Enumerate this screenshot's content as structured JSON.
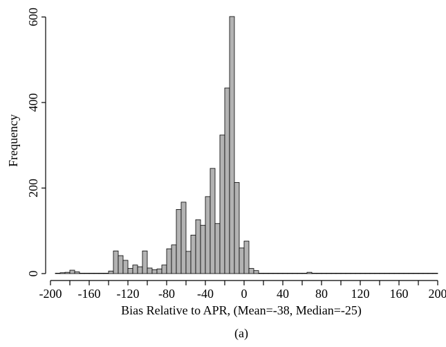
{
  "chart_data": {
    "type": "bar",
    "xlabel": "Bias Relative to APR, (Mean=-38, Median=-25)",
    "ylabel": "Frequency",
    "caption": "(a)",
    "xlim": [
      -205,
      205
    ],
    "ylim": [
      0,
      630
    ],
    "xticks": [
      -200,
      -160,
      -120,
      -80,
      -40,
      0,
      40,
      80,
      120,
      160,
      200
    ],
    "xtick_labels": [
      "-200",
      "-160",
      "-120",
      "-80",
      "-40",
      "0",
      "40",
      "80",
      "120",
      "160",
      "200"
    ],
    "yticks": [
      0,
      200,
      400,
      600
    ],
    "ytick_labels": [
      "0",
      "200",
      "400",
      "600"
    ],
    "bin_width": 5,
    "bins": [
      {
        "x0": -195,
        "count": 1
      },
      {
        "x0": -190,
        "count": 2
      },
      {
        "x0": -185,
        "count": 3
      },
      {
        "x0": -180,
        "count": 8
      },
      {
        "x0": -175,
        "count": 4
      },
      {
        "x0": -170,
        "count": 1
      },
      {
        "x0": -165,
        "count": 1
      },
      {
        "x0": -160,
        "count": 1
      },
      {
        "x0": -155,
        "count": 1
      },
      {
        "x0": -150,
        "count": 1
      },
      {
        "x0": -145,
        "count": 1
      },
      {
        "x0": -140,
        "count": 6
      },
      {
        "x0": -135,
        "count": 53
      },
      {
        "x0": -130,
        "count": 42
      },
      {
        "x0": -125,
        "count": 31
      },
      {
        "x0": -120,
        "count": 12
      },
      {
        "x0": -115,
        "count": 20
      },
      {
        "x0": -110,
        "count": 16
      },
      {
        "x0": -105,
        "count": 53
      },
      {
        "x0": -100,
        "count": 13
      },
      {
        "x0": -95,
        "count": 9
      },
      {
        "x0": -90,
        "count": 11
      },
      {
        "x0": -85,
        "count": 20
      },
      {
        "x0": -80,
        "count": 58
      },
      {
        "x0": -75,
        "count": 67
      },
      {
        "x0": -70,
        "count": 150
      },
      {
        "x0": -65,
        "count": 167
      },
      {
        "x0": -60,
        "count": 52
      },
      {
        "x0": -55,
        "count": 90
      },
      {
        "x0": -50,
        "count": 126
      },
      {
        "x0": -45,
        "count": 113
      },
      {
        "x0": -40,
        "count": 180
      },
      {
        "x0": -35,
        "count": 246
      },
      {
        "x0": -30,
        "count": 117
      },
      {
        "x0": -25,
        "count": 324
      },
      {
        "x0": -20,
        "count": 434
      },
      {
        "x0": -15,
        "count": 601
      },
      {
        "x0": -10,
        "count": 213
      },
      {
        "x0": -5,
        "count": 60
      },
      {
        "x0": 0,
        "count": 76
      },
      {
        "x0": 5,
        "count": 12
      },
      {
        "x0": 10,
        "count": 7
      },
      {
        "x0": 15,
        "count": 1
      },
      {
        "x0": 20,
        "count": 1
      },
      {
        "x0": 25,
        "count": 1
      },
      {
        "x0": 30,
        "count": 1
      },
      {
        "x0": 35,
        "count": 1
      },
      {
        "x0": 40,
        "count": 1
      },
      {
        "x0": 45,
        "count": 1
      },
      {
        "x0": 50,
        "count": 1
      },
      {
        "x0": 55,
        "count": 1
      },
      {
        "x0": 60,
        "count": 1
      },
      {
        "x0": 65,
        "count": 3
      },
      {
        "x0": 70,
        "count": 1
      },
      {
        "x0": 75,
        "count": 1
      },
      {
        "x0": 80,
        "count": 1
      },
      {
        "x0": 85,
        "count": 1
      },
      {
        "x0": 90,
        "count": 1
      },
      {
        "x0": 95,
        "count": 1
      },
      {
        "x0": 100,
        "count": 1
      },
      {
        "x0": 105,
        "count": 1
      },
      {
        "x0": 110,
        "count": 1
      },
      {
        "x0": 115,
        "count": 1
      },
      {
        "x0": 120,
        "count": 1
      },
      {
        "x0": 125,
        "count": 1
      },
      {
        "x0": 130,
        "count": 1
      },
      {
        "x0": 135,
        "count": 1
      },
      {
        "x0": 140,
        "count": 1
      },
      {
        "x0": 145,
        "count": 1
      },
      {
        "x0": 150,
        "count": 1
      },
      {
        "x0": 155,
        "count": 1
      },
      {
        "x0": 160,
        "count": 1
      },
      {
        "x0": 165,
        "count": 1
      },
      {
        "x0": 170,
        "count": 1
      },
      {
        "x0": 175,
        "count": 1
      },
      {
        "x0": 180,
        "count": 1
      },
      {
        "x0": 185,
        "count": 1
      },
      {
        "x0": 190,
        "count": 1
      },
      {
        "x0": 195,
        "count": 1
      }
    ],
    "bar_fill": "#b3b3b3",
    "bar_stroke": "#000000",
    "grid": false,
    "legend": "none"
  }
}
